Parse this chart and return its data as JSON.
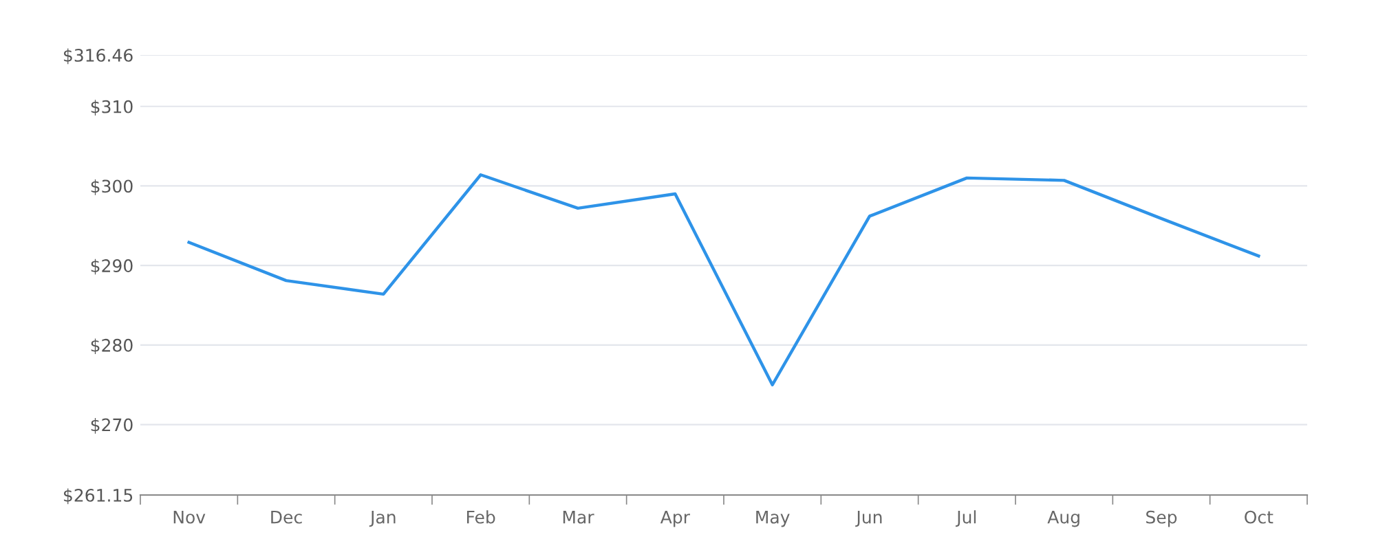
{
  "chart_data": {
    "type": "line",
    "categories": [
      "Nov",
      "Dec",
      "Jan",
      "Feb",
      "Mar",
      "Apr",
      "May",
      "Jun",
      "Jul",
      "Aug",
      "Sep",
      "Oct"
    ],
    "series": [
      {
        "color": "#2e93e8",
        "values": [
          292.9,
          288.1,
          286.4,
          301.4,
          297.2,
          299.0,
          275.0,
          296.2,
          301.0,
          300.7,
          295.9,
          291.2
        ]
      }
    ],
    "ylim": [
      261.15,
      316.46
    ],
    "yticks": [
      {
        "value": 261.15,
        "label": "$261.15"
      },
      {
        "value": 270,
        "label": "$270"
      },
      {
        "value": 280,
        "label": "$280"
      },
      {
        "value": 290,
        "label": "$290"
      },
      {
        "value": 300,
        "label": "$300"
      },
      {
        "value": 310,
        "label": "$310"
      },
      {
        "value": 316.46,
        "label": "$316.46"
      }
    ],
    "grid": "y",
    "marker": "none",
    "line_style": "solid"
  }
}
